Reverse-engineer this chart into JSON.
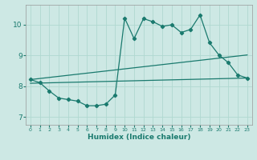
{
  "xlabel": "Humidex (Indice chaleur)",
  "bg_color": "#cde8e4",
  "line_color": "#1a7a6e",
  "grid_color": "#b0d8d0",
  "xlim": [
    -0.5,
    23.5
  ],
  "ylim": [
    6.75,
    10.65
  ],
  "xticks": [
    0,
    1,
    2,
    3,
    4,
    5,
    6,
    7,
    8,
    9,
    10,
    11,
    12,
    13,
    14,
    15,
    16,
    17,
    18,
    19,
    20,
    21,
    22,
    23
  ],
  "yticks": [
    7,
    8,
    9,
    10
  ],
  "line1_x": [
    0,
    1,
    2,
    3,
    4,
    5,
    6,
    7,
    8,
    9,
    10,
    11,
    12,
    13,
    14,
    15,
    16,
    17,
    18,
    19,
    20,
    21,
    22,
    23
  ],
  "line1_y": [
    8.22,
    8.12,
    7.85,
    7.62,
    7.57,
    7.52,
    7.37,
    7.37,
    7.42,
    7.72,
    10.22,
    9.55,
    10.2,
    10.1,
    9.95,
    10.0,
    9.75,
    9.85,
    10.32,
    9.42,
    9.02,
    8.77,
    8.37,
    8.27
  ],
  "line2_x": [
    0,
    23
  ],
  "line2_y": [
    8.22,
    9.02
  ],
  "line3_x": [
    0,
    23
  ],
  "line3_y": [
    8.1,
    8.27
  ]
}
